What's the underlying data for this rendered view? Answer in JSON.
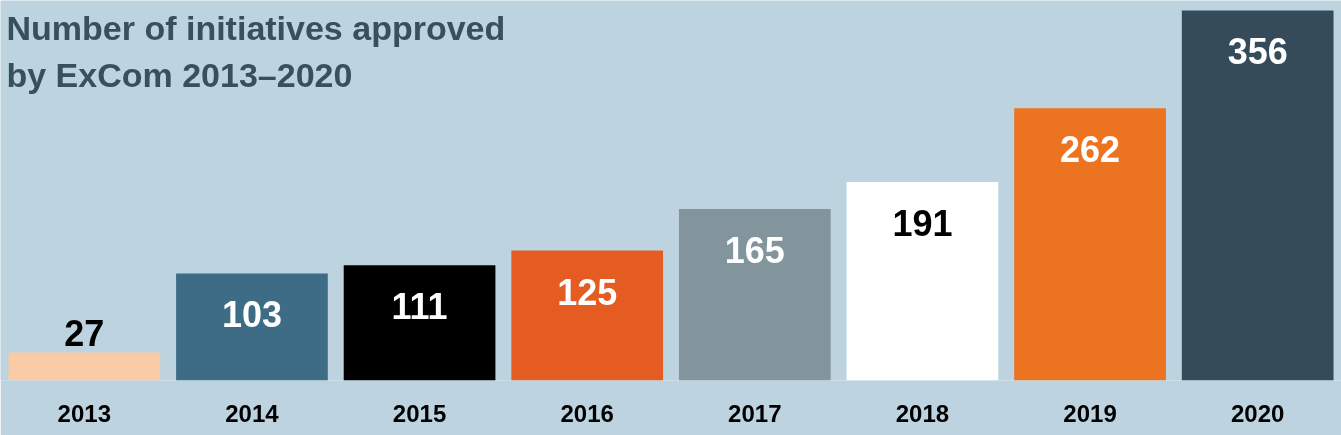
{
  "chart_data": {
    "type": "bar",
    "title": "Number of initiatives approved\nby ExCom 2013–2020",
    "categories": [
      "2013",
      "2014",
      "2015",
      "2016",
      "2017",
      "2018",
      "2019",
      "2020"
    ],
    "values": [
      27,
      103,
      111,
      125,
      165,
      191,
      262,
      356
    ],
    "colors": [
      "#f9cba6",
      "#3e6b85",
      "#000000",
      "#e55c22",
      "#83959c",
      "#ffffff",
      "#ec7320",
      "#354b5a"
    ],
    "data_labels": true,
    "grid": false
  }
}
